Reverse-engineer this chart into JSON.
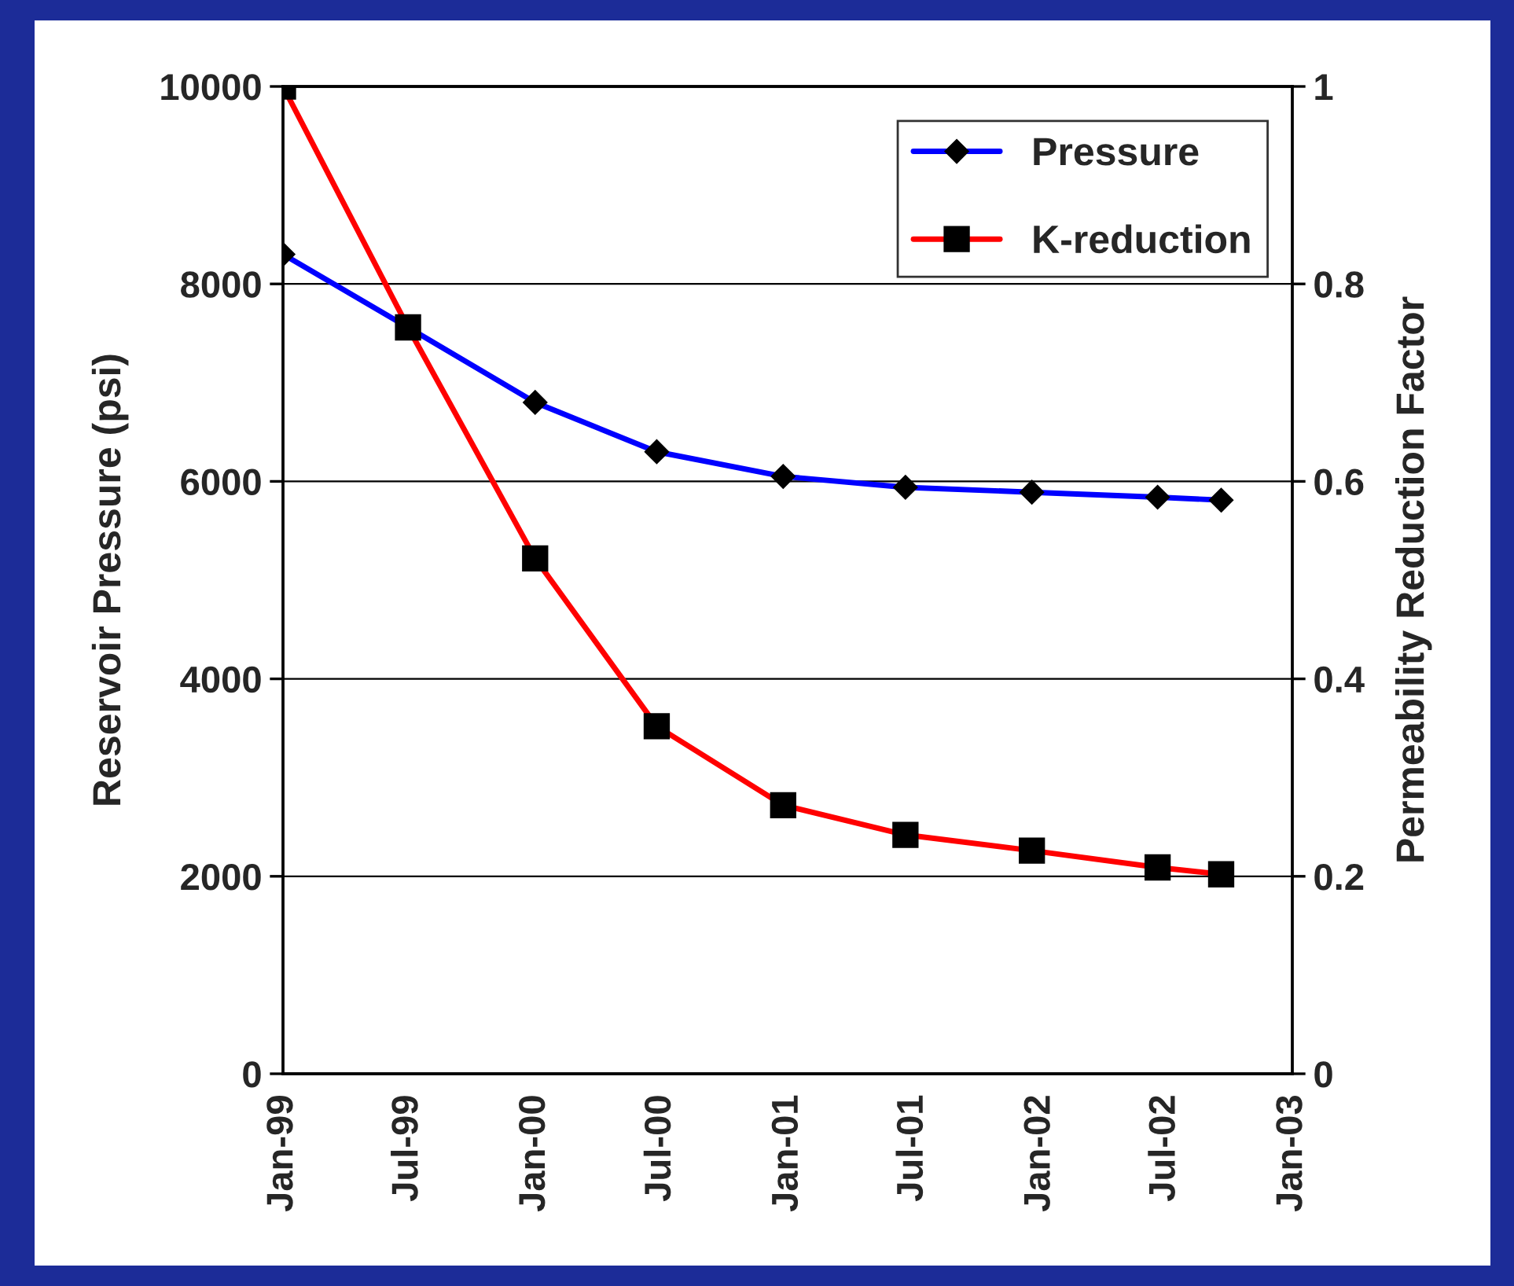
{
  "chart_data": {
    "type": "line",
    "ylabel": "Reservoir Pressure (psi)",
    "y2label": "Permeability Reduction Factor",
    "x": [
      "1999-01-01",
      "1999-07-01",
      "2000-01-01",
      "2000-06-25",
      "2000-12-25",
      "2001-06-20",
      "2001-12-20",
      "2002-06-20",
      "2002-09-20"
    ],
    "series": [
      {
        "name": "Pressure",
        "color": "#0000ff",
        "marker": "diamond",
        "values": [
          8300,
          7560,
          6800,
          6300,
          6050,
          5940,
          5890,
          5840,
          5810
        ]
      },
      {
        "name": "K-reduction",
        "color": "#ff0000",
        "marker": "square",
        "axis": "y2",
        "values": [
          1.0,
          0.756,
          0.522,
          0.352,
          0.272,
          0.242,
          0.226,
          0.209,
          0.202
        ]
      }
    ],
    "xlim": [
      "1999-01-01",
      "2003-01-01"
    ],
    "xticks": [
      {
        "value": "1999-01-01",
        "label": "Jan-99"
      },
      {
        "value": "1999-07-01",
        "label": "Jul-99"
      },
      {
        "value": "2000-01-01",
        "label": "Jan-00"
      },
      {
        "value": "2000-07-01",
        "label": "Jul-00"
      },
      {
        "value": "2001-01-01",
        "label": "Jan-01"
      },
      {
        "value": "2001-07-01",
        "label": "Jul-01"
      },
      {
        "value": "2002-01-01",
        "label": "Jan-02"
      },
      {
        "value": "2002-07-01",
        "label": "Jul-02"
      },
      {
        "value": "2003-01-01",
        "label": "Jan-03"
      }
    ],
    "ylim": [
      0,
      10000
    ],
    "yticks": [
      0,
      2000,
      4000,
      6000,
      8000,
      10000
    ],
    "y2lim": [
      0,
      1
    ],
    "y2ticks": [
      0,
      0.2,
      0.4,
      0.6,
      0.8,
      1
    ],
    "grid": "y",
    "legend": "top right"
  }
}
